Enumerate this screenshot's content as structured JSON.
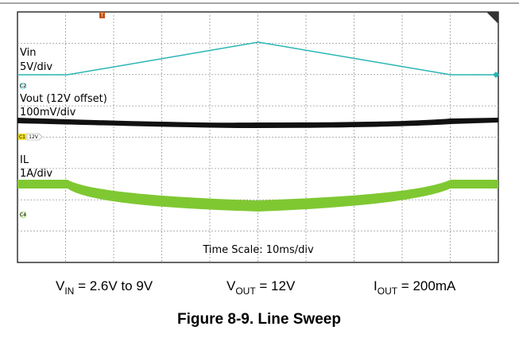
{
  "scope": {
    "traces": [
      {
        "name": "Vin",
        "scale": "5V/div"
      },
      {
        "name": "Vout (12V offset)",
        "scale": "100mV/div"
      },
      {
        "name": "IL",
        "scale": "1A/div"
      }
    ],
    "time_scale": "Time Scale: 10ms/div",
    "markers": {
      "c2": "C2",
      "c1": "C1",
      "offset": "12V",
      "c4": "C4",
      "trigger": "T"
    }
  },
  "conditions": [
    {
      "symbol": "V",
      "sub": "IN",
      "rest": " = 2.6V to 9V"
    },
    {
      "symbol": "V",
      "sub": "OUT",
      "rest": " = 12V"
    },
    {
      "symbol": "I",
      "sub": "OUT",
      "rest": " = 200mA"
    }
  ],
  "caption": "Figure 8-9. Line Sweep"
}
